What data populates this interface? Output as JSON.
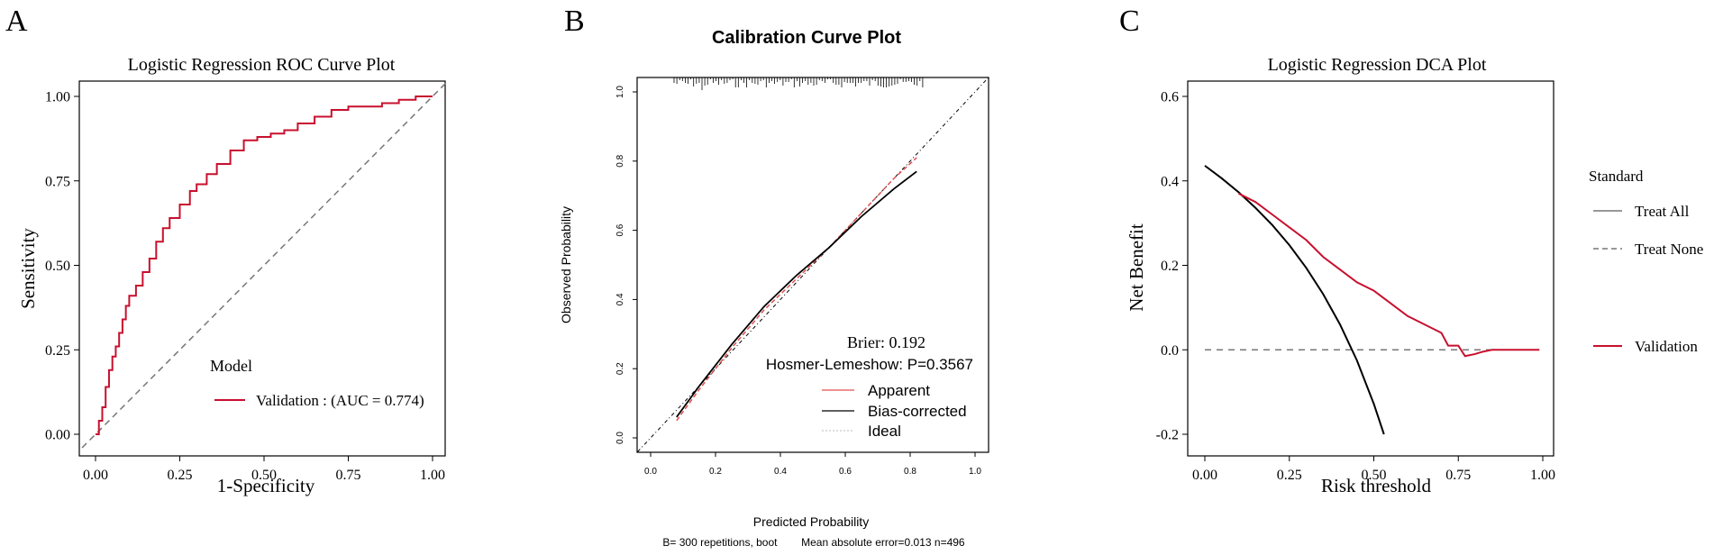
{
  "colors": {
    "validation": "#c8102e",
    "axis": "#000000",
    "ref": "#777777",
    "apparent": "#e05050"
  },
  "panels": {
    "a": "A",
    "b": "B",
    "c": "C"
  },
  "chart_data": [
    {
      "type": "line",
      "panel": "A",
      "title": "Logistic Regression ROC Curve Plot",
      "xlabel": "1-Specificity",
      "ylabel": "Sensitivity",
      "xlim": [
        0,
        1
      ],
      "ylim": [
        0,
        1
      ],
      "xticks": [
        "0.00",
        "0.25",
        "0.50",
        "0.75",
        "1.00"
      ],
      "yticks": [
        "0.00",
        "0.25",
        "0.50",
        "0.75",
        "1.00"
      ],
      "legend_title": "Model",
      "series": [
        {
          "name": "Validation : (AUC = 0.774)",
          "x": [
            0,
            0.01,
            0.02,
            0.03,
            0.04,
            0.05,
            0.06,
            0.07,
            0.08,
            0.09,
            0.1,
            0.12,
            0.14,
            0.16,
            0.18,
            0.2,
            0.22,
            0.25,
            0.28,
            0.3,
            0.33,
            0.36,
            0.4,
            0.44,
            0.48,
            0.52,
            0.56,
            0.6,
            0.65,
            0.7,
            0.75,
            0.8,
            0.85,
            0.9,
            0.95,
            1.0
          ],
          "y": [
            0,
            0.04,
            0.08,
            0.14,
            0.19,
            0.23,
            0.26,
            0.3,
            0.34,
            0.38,
            0.41,
            0.44,
            0.48,
            0.52,
            0.57,
            0.61,
            0.64,
            0.68,
            0.72,
            0.74,
            0.77,
            0.8,
            0.84,
            0.87,
            0.88,
            0.89,
            0.9,
            0.92,
            0.94,
            0.96,
            0.97,
            0.97,
            0.98,
            0.99,
            1.0,
            1.0
          ]
        },
        {
          "name": "reference",
          "x": [
            0,
            1
          ],
          "y": [
            0,
            1
          ]
        }
      ]
    },
    {
      "type": "line",
      "panel": "B",
      "title": "Calibration Curve Plot",
      "xlabel": "Predicted Probability",
      "ylabel": "Observed Probability",
      "xlim": [
        0,
        1
      ],
      "ylim": [
        0,
        1
      ],
      "xticks": [
        "0.0",
        "0.2",
        "0.4",
        "0.6",
        "0.8",
        "1.0"
      ],
      "yticks": [
        "0.0",
        "0.2",
        "0.4",
        "0.6",
        "0.8",
        "1.0"
      ],
      "annotations": [
        "Brier: 0.192",
        "Hosmer-Lemeshow: P=0.3567"
      ],
      "footer": "B= 300 repetitions, boot        Mean absolute error=0.013 n=496",
      "series": [
        {
          "name": "Apparent",
          "x": [
            0.08,
            0.15,
            0.25,
            0.35,
            0.45,
            0.55,
            0.65,
            0.75,
            0.82
          ],
          "y": [
            0.05,
            0.14,
            0.26,
            0.37,
            0.46,
            0.55,
            0.65,
            0.75,
            0.81
          ]
        },
        {
          "name": "Bias-corrected",
          "x": [
            0.08,
            0.15,
            0.25,
            0.35,
            0.45,
            0.55,
            0.65,
            0.75,
            0.82
          ],
          "y": [
            0.06,
            0.15,
            0.27,
            0.38,
            0.47,
            0.55,
            0.64,
            0.72,
            0.77
          ]
        },
        {
          "name": "Ideal",
          "x": [
            -0.04,
            1.04
          ],
          "y": [
            -0.04,
            1.04
          ]
        }
      ]
    },
    {
      "type": "line",
      "panel": "C",
      "title": "Logistic Regression DCA Plot",
      "xlabel": "Risk threshold",
      "ylabel": "Net Benefit",
      "xlim": [
        0,
        1
      ],
      "ylim": [
        -0.2,
        0.6
      ],
      "xticks": [
        "0.00",
        "0.25",
        "0.50",
        "0.75",
        "1.00"
      ],
      "yticks": [
        "-0.2",
        "0.0",
        "0.2",
        "0.4",
        "0.6"
      ],
      "legend_title": "Standard",
      "series": [
        {
          "name": "Treat All",
          "x": [
            0,
            0.05,
            0.1,
            0.15,
            0.2,
            0.25,
            0.3,
            0.35,
            0.4,
            0.45,
            0.5,
            0.53
          ],
          "y": [
            0.436,
            0.406,
            0.373,
            0.336,
            0.295,
            0.248,
            0.194,
            0.132,
            0.06,
            -0.025,
            -0.128,
            -0.2
          ]
        },
        {
          "name": "Treat None",
          "x": [
            0,
            1
          ],
          "y": [
            0,
            0
          ]
        },
        {
          "name": "Validation",
          "x": [
            0.1,
            0.15,
            0.2,
            0.25,
            0.3,
            0.35,
            0.4,
            0.45,
            0.5,
            0.55,
            0.6,
            0.65,
            0.7,
            0.72,
            0.75,
            0.77,
            0.8,
            0.82,
            0.85,
            0.9,
            0.95,
            0.99
          ],
          "y": [
            0.37,
            0.35,
            0.32,
            0.29,
            0.26,
            0.22,
            0.19,
            0.16,
            0.14,
            0.11,
            0.08,
            0.06,
            0.04,
            0.01,
            0.01,
            -0.015,
            -0.01,
            -0.005,
            0.0,
            0.0,
            0.0,
            0.0
          ]
        }
      ]
    }
  ]
}
